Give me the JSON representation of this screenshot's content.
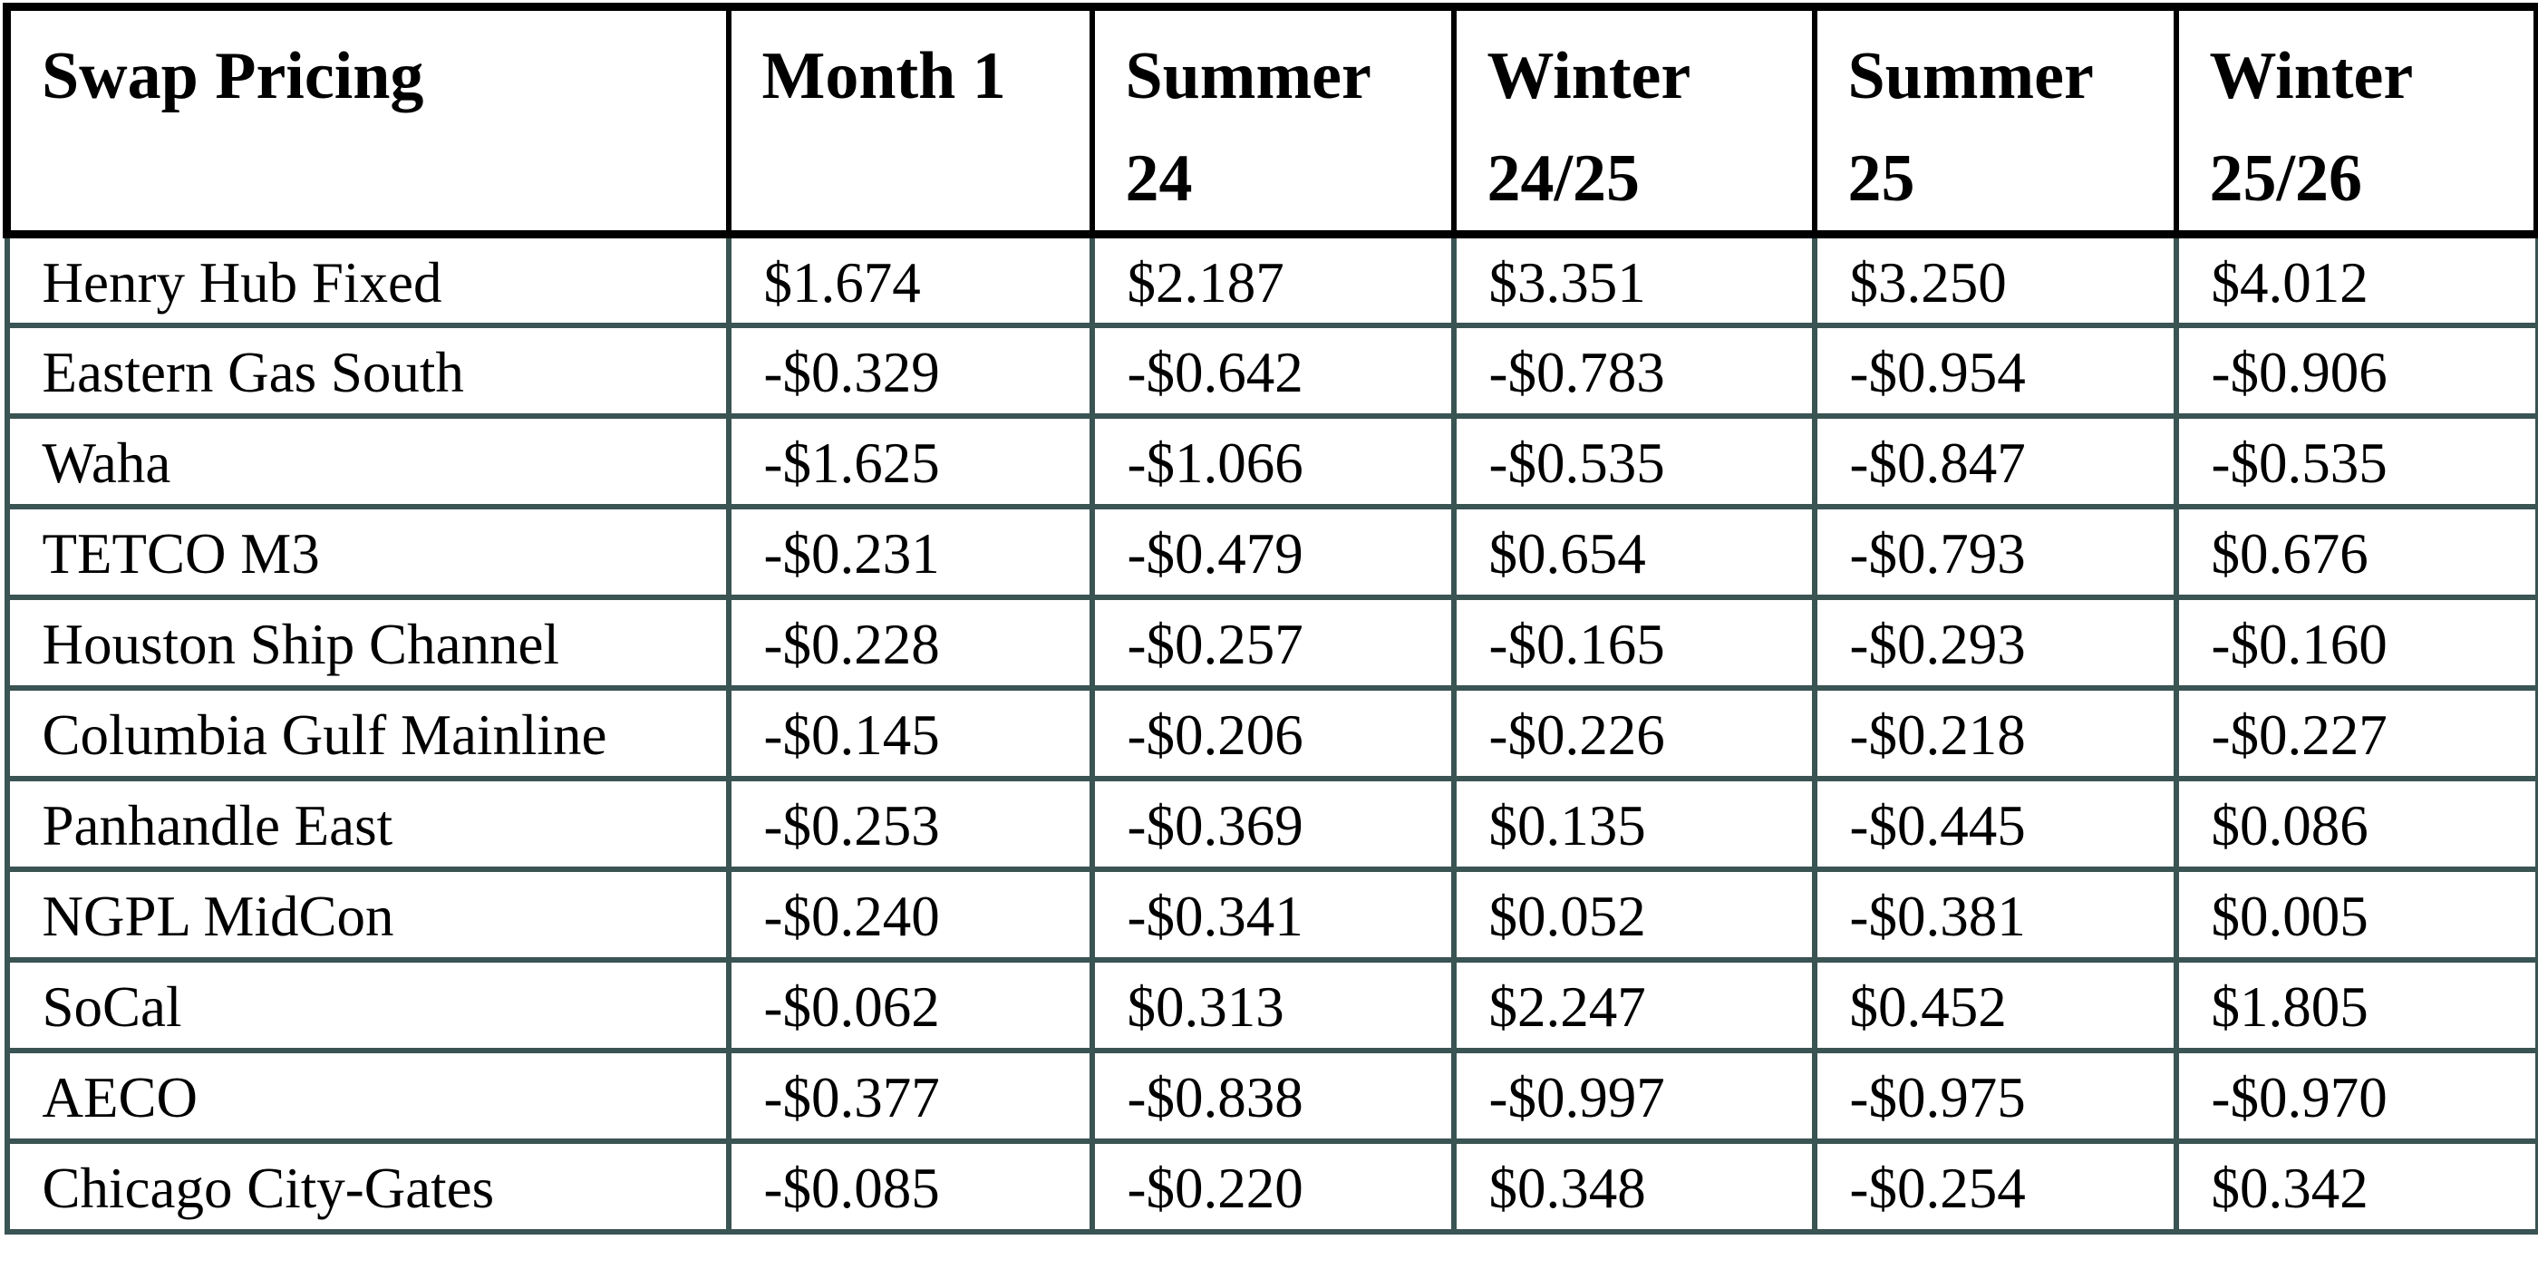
{
  "table": {
    "header": {
      "title": "Swap Pricing",
      "columns": [
        "Month 1",
        "Summer\n24",
        "Winter\n24/25",
        "Summer\n25",
        "Winter\n25/26"
      ]
    },
    "rows": [
      {
        "label": "Henry Hub Fixed",
        "values": [
          "$1.674",
          "$2.187",
          "$3.351",
          "$3.250",
          "$4.012"
        ]
      },
      {
        "label": "Eastern Gas South",
        "values": [
          "-$0.329",
          "-$0.642",
          "-$0.783",
          "-$0.954",
          "-$0.906"
        ]
      },
      {
        "label": "Waha",
        "values": [
          "-$1.625",
          "-$1.066",
          "-$0.535",
          "-$0.847",
          "-$0.535"
        ]
      },
      {
        "label": "TETCO M3",
        "values": [
          "-$0.231",
          "-$0.479",
          "$0.654",
          "-$0.793",
          "$0.676"
        ]
      },
      {
        "label": "Houston Ship Channel",
        "values": [
          "-$0.228",
          "-$0.257",
          "-$0.165",
          "-$0.293",
          "-$0.160"
        ]
      },
      {
        "label": "Columbia Gulf Mainline",
        "values": [
          "-$0.145",
          "-$0.206",
          "-$0.226",
          "-$0.218",
          "-$0.227"
        ]
      },
      {
        "label": "Panhandle East",
        "values": [
          "-$0.253",
          "-$0.369",
          "$0.135",
          "-$0.445",
          "$0.086"
        ]
      },
      {
        "label": "NGPL MidCon",
        "values": [
          "-$0.240",
          "-$0.341",
          "$0.052",
          "-$0.381",
          "$0.005"
        ]
      },
      {
        "label": "SoCal",
        "values": [
          "-$0.062",
          "$0.313",
          "$2.247",
          "$0.452",
          "$1.805"
        ]
      },
      {
        "label": "AECO",
        "values": [
          "-$0.377",
          "-$0.838",
          "-$0.997",
          "-$0.975",
          "-$0.970"
        ]
      },
      {
        "label": "Chicago City-Gates",
        "values": [
          "-$0.085",
          "-$0.220",
          "$0.348",
          "-$0.254",
          "$0.342"
        ]
      }
    ],
    "colors": {
      "header_border": "#000000",
      "grid_border": "#3a5353",
      "background": "#ffffff",
      "text": "#000000"
    }
  }
}
